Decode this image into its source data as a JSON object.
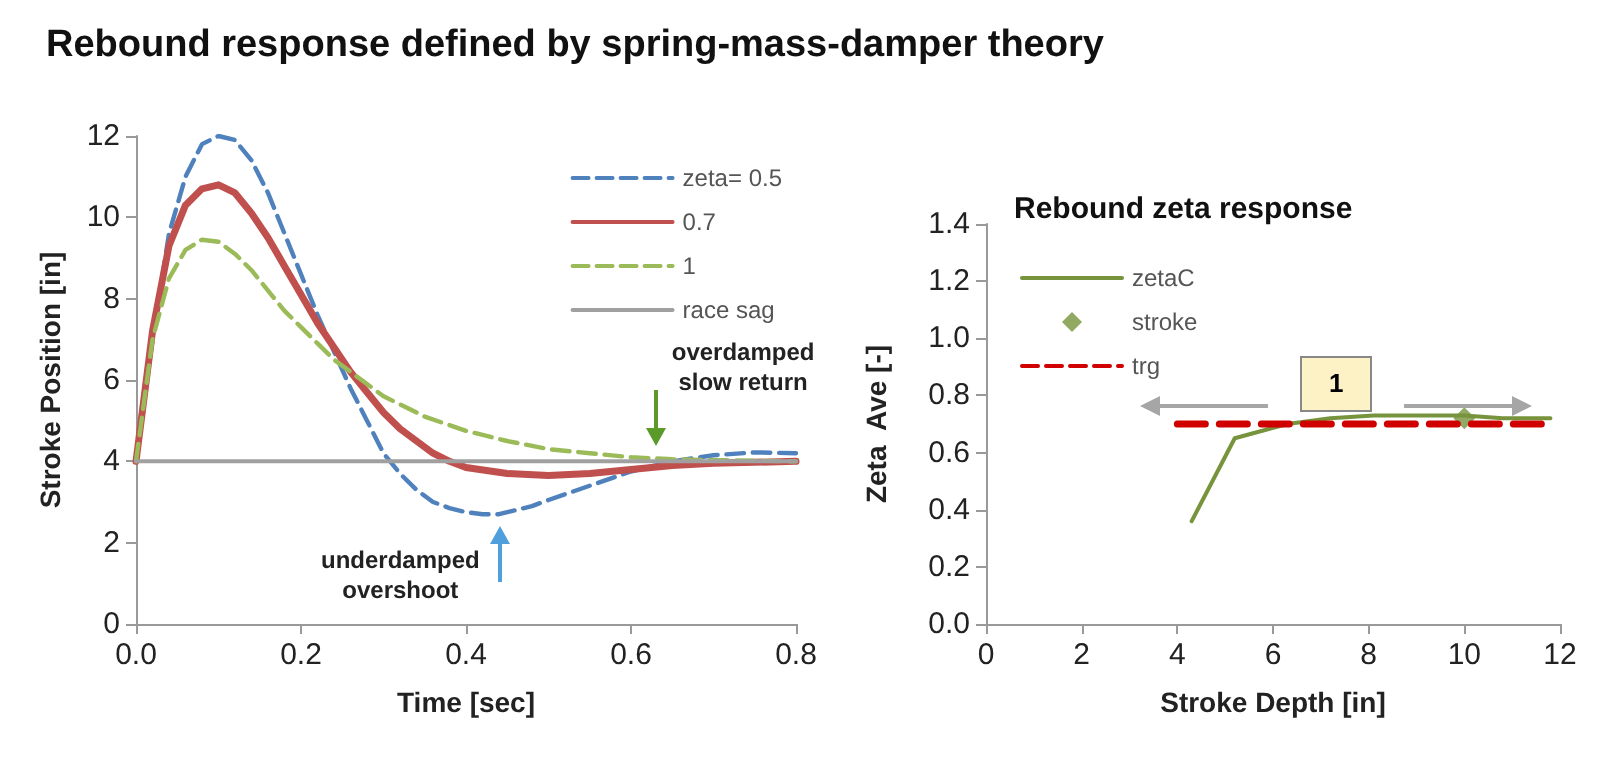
{
  "chart_data": [
    {
      "type": "line",
      "title": "Rebound response defined by spring-mass-damper theory",
      "xlabel": "Time [sec]",
      "ylabel": "Stroke Position [in]",
      "xlim": [
        0,
        0.8
      ],
      "xticks": [
        {
          "value": 0,
          "label": "0.0"
        },
        0.2,
        0.4,
        0.6,
        0.8
      ],
      "ylim": [
        0,
        12
      ],
      "yticks": [
        0,
        2,
        4,
        6,
        8,
        10,
        12
      ],
      "grid": false,
      "legend": "top right",
      "marker": "none",
      "series": [
        {
          "name": "zeta= 0.5",
          "color": "#4f81bd",
          "line_style": "dashed",
          "x": [
            0,
            0.02,
            0.04,
            0.06,
            0.08,
            0.1,
            0.12,
            0.14,
            0.16,
            0.18,
            0.2,
            0.22,
            0.24,
            0.26,
            0.28,
            0.3,
            0.32,
            0.34,
            0.36,
            0.38,
            0.4,
            0.42,
            0.44,
            0.46,
            0.48,
            0.5,
            0.55,
            0.6,
            0.65,
            0.7,
            0.75,
            0.8
          ],
          "values": [
            4,
            7,
            9.6,
            11,
            11.8,
            12,
            11.9,
            11.4,
            10.6,
            9.6,
            8.6,
            7.6,
            6.7,
            5.8,
            5,
            4.2,
            3.7,
            3.3,
            3,
            2.85,
            2.75,
            2.7,
            2.7,
            2.8,
            2.9,
            3.05,
            3.4,
            3.75,
            4,
            4.15,
            4.22,
            4.2
          ]
        },
        {
          "name": "0.7",
          "color": "#c0504d",
          "line_style": "solid",
          "x": [
            0,
            0.02,
            0.04,
            0.06,
            0.08,
            0.1,
            0.12,
            0.14,
            0.16,
            0.18,
            0.2,
            0.22,
            0.24,
            0.26,
            0.28,
            0.3,
            0.32,
            0.34,
            0.36,
            0.38,
            0.4,
            0.45,
            0.5,
            0.55,
            0.6,
            0.65,
            0.7,
            0.8
          ],
          "values": [
            4,
            7.2,
            9.3,
            10.3,
            10.7,
            10.8,
            10.6,
            10.1,
            9.5,
            8.8,
            8.1,
            7.4,
            6.8,
            6.2,
            5.7,
            5.2,
            4.8,
            4.5,
            4.2,
            4,
            3.85,
            3.7,
            3.65,
            3.7,
            3.8,
            3.9,
            3.95,
            4
          ]
        },
        {
          "name": "1",
          "color": "#9bbb59",
          "line_style": "dashed",
          "x": [
            0,
            0.02,
            0.04,
            0.06,
            0.08,
            0.1,
            0.12,
            0.14,
            0.16,
            0.18,
            0.2,
            0.22,
            0.24,
            0.26,
            0.28,
            0.3,
            0.35,
            0.4,
            0.45,
            0.5,
            0.55,
            0.6,
            0.65,
            0.7,
            0.8
          ],
          "values": [
            4,
            7,
            8.5,
            9.2,
            9.45,
            9.4,
            9.1,
            8.7,
            8.2,
            7.7,
            7.3,
            6.9,
            6.5,
            6.2,
            5.9,
            5.6,
            5.1,
            4.75,
            4.5,
            4.3,
            4.2,
            4.1,
            4.05,
            4.03,
            4
          ]
        },
        {
          "name": "race sag",
          "color": "#a0a0a0",
          "line_style": "solid",
          "x": [
            0,
            0.8
          ],
          "values": [
            4,
            4
          ]
        }
      ],
      "annotations": [
        {
          "text": "overdamped\nslow return",
          "x": 0.63,
          "y": 4.1
        },
        {
          "text": "underdamped\novershoot",
          "x": 0.44,
          "y": 2.7
        }
      ]
    },
    {
      "type": "line",
      "title": "Rebound zeta response",
      "xlabel": "Stroke Depth [in]",
      "ylabel": "Zeta  Ave [-]",
      "xlim": [
        0,
        12
      ],
      "xticks": [
        0,
        2,
        4,
        6,
        8,
        10,
        12
      ],
      "ylim": [
        0,
        1.4
      ],
      "yticks": [
        {
          "value": 0,
          "label": "0.0"
        },
        0.2,
        0.4,
        0.6,
        0.8,
        {
          "value": 1,
          "label": "1.0"
        },
        1.2,
        1.4
      ],
      "grid": false,
      "legend": "top left",
      "series": [
        {
          "name": "zetaC",
          "color": "#77933c",
          "line_style": "solid",
          "marker": "none",
          "x": [
            4.3,
            5.2,
            6.3,
            7.2,
            8.1,
            9,
            10,
            10.8,
            11.8
          ],
          "values": [
            0.36,
            0.65,
            0.7,
            0.72,
            0.73,
            0.73,
            0.73,
            0.72,
            0.72
          ]
        },
        {
          "name": "stroke",
          "type": "scatter",
          "color": "#77933c",
          "marker": "diamond",
          "x": [
            10
          ],
          "values": [
            0.72
          ]
        },
        {
          "name": "trg",
          "color": "#d00000",
          "line_style": "dashed",
          "marker": "none",
          "x": [
            4,
            11.8
          ],
          "values": [
            0.7,
            0.7
          ]
        }
      ],
      "annotations": [
        "1"
      ]
    }
  ]
}
